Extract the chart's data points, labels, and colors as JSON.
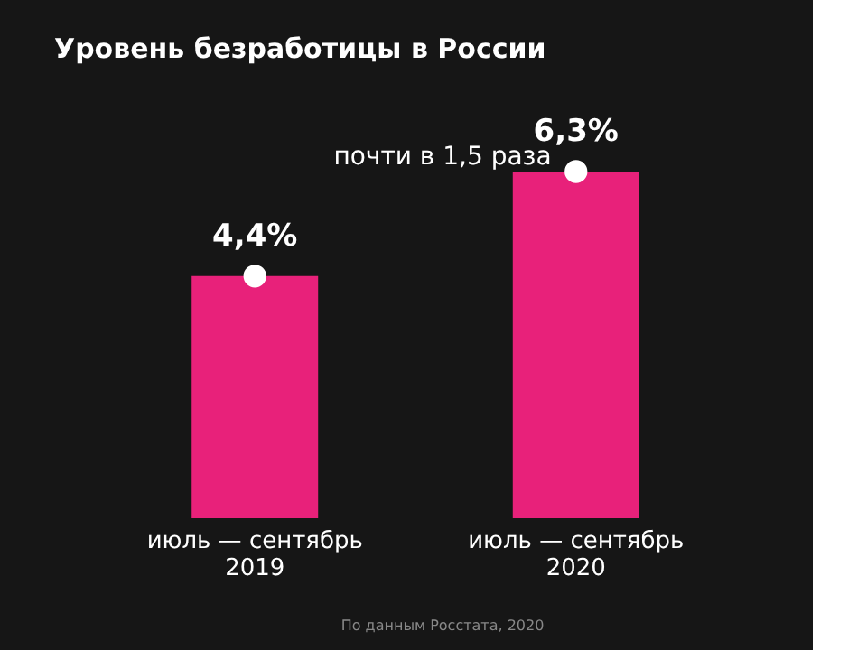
{
  "chart_data": {
    "type": "bar",
    "title": "Уровень безработицы в России",
    "categories": [
      "июль — сентябрь 2019",
      "июль — сентябрь 2020"
    ],
    "series": [
      {
        "color": "#e8217a",
        "values": [
          4.4,
          6.3
        ],
        "value_labels": [
          "4,4%",
          "6,3%"
        ]
      },
      {
        "type": "scatter",
        "color": "#ffffff",
        "marker": "circle",
        "x": [
          "июль — сентябрь 2019",
          "июль — сентябрь 2020"
        ],
        "values": [
          4.4,
          6.3
        ]
      }
    ],
    "annotations": [
      "почти в 1,5 раза",
      "По данным Росстата, 2020"
    ]
  }
}
